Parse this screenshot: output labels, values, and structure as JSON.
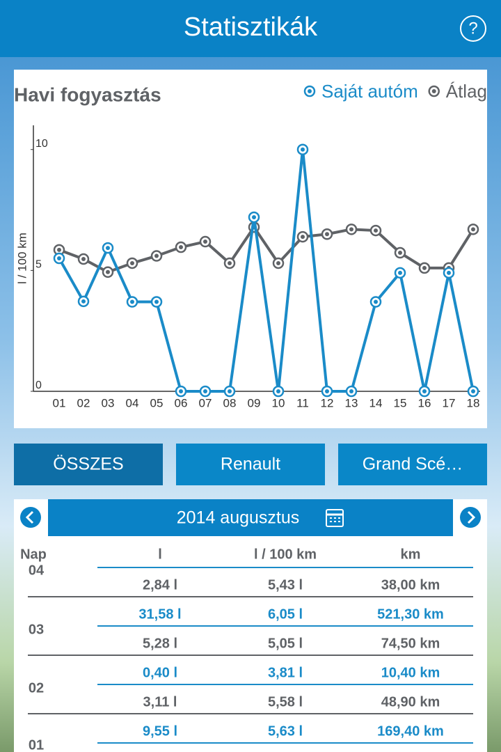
{
  "header": {
    "title": "Statisztikák",
    "help": "?"
  },
  "chart_data": {
    "type": "line",
    "title": "Havi fogyasztás",
    "y_label": "l / 100 km",
    "categories": [
      "01",
      "02",
      "03",
      "04",
      "05",
      "06",
      "07",
      "08",
      "09",
      "10",
      "11",
      "12",
      "13",
      "14",
      "15",
      "16",
      "17",
      "18"
    ],
    "series": [
      {
        "name": "Saját autóm",
        "color": "#1a8bc8",
        "values": [
          5.5,
          3.72,
          5.93,
          3.7,
          3.7,
          0,
          0,
          0,
          7.2,
          0,
          10,
          0,
          0,
          3.7,
          4.9,
          0,
          4.9,
          0
        ]
      },
      {
        "name": "Átlag",
        "color": "#5f6266",
        "values": [
          5.85,
          5.47,
          4.93,
          5.3,
          5.6,
          5.96,
          6.19,
          5.3,
          6.79,
          5.3,
          6.39,
          6.5,
          6.7,
          6.65,
          5.73,
          5.1,
          5.1,
          6.7
        ]
      }
    ],
    "ylim": [
      0,
      11
    ],
    "yticks": [
      0,
      5,
      10
    ]
  },
  "filters": [
    {
      "label": "ÖSSZES",
      "color": "#0e6ea6"
    },
    {
      "label": "Renault",
      "color": "#0a87c8"
    },
    {
      "label": "Grand Scé…",
      "color": "#0a87c8"
    }
  ],
  "month": "2014 augusztus",
  "table": {
    "columns": [
      "Nap",
      "l",
      "l / 100 km",
      "km"
    ],
    "days": [
      {
        "day": "04",
        "rows": [
          {
            "color": "#5f6266",
            "cells": [
              "2,84 l",
              "5,43 l",
              "38,00 km"
            ]
          }
        ]
      },
      {
        "day": "03",
        "rows": [
          {
            "color": "#1a8bc8",
            "cells": [
              "31,58 l",
              "6,05 l",
              "521,30 km"
            ]
          },
          {
            "color": "#5f6266",
            "cells": [
              "5,28 l",
              "5,05 l",
              "74,50 km"
            ]
          }
        ]
      },
      {
        "day": "02",
        "rows": [
          {
            "color": "#1a8bc8",
            "cells": [
              "0,40 l",
              "3,81 l",
              "10,40 km"
            ]
          },
          {
            "color": "#5f6266",
            "cells": [
              "3,11 l",
              "5,58 l",
              "48,90 km"
            ]
          }
        ]
      },
      {
        "day": "01",
        "rows": [
          {
            "color": "#1a8bc8",
            "cells": [
              "9,55 l",
              "5,63 l",
              "169,40 km"
            ]
          }
        ]
      }
    ]
  }
}
